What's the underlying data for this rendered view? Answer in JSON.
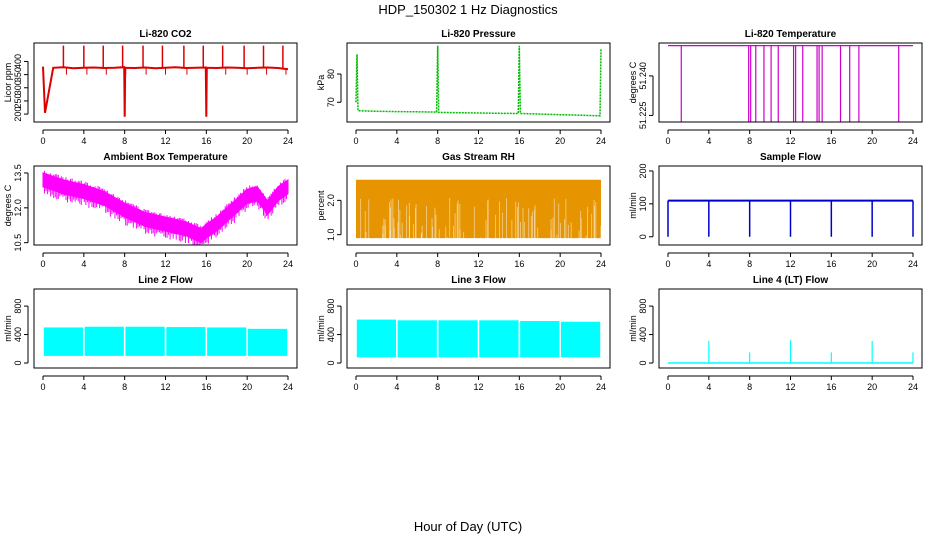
{
  "figure": {
    "title": "HDP_150302  1 Hz Diagnostics",
    "xlabel": "Hour of Day (UTC)"
  },
  "chart_data": [
    {
      "id": "co2",
      "type": "line",
      "title": "Li-820 CO2",
      "ylabel": "Licor ppm",
      "color": "#dd0000",
      "xlim": [
        0,
        24
      ],
      "ylim": [
        170,
        470
      ],
      "xticks": [
        0,
        4,
        8,
        12,
        16,
        20,
        24
      ],
      "yticks": [
        200,
        250,
        300,
        350,
        400
      ],
      "baseline": 375,
      "x": [
        0,
        0.2,
        1,
        2,
        3,
        4,
        5,
        6,
        7,
        7.95,
        8.0,
        8.05,
        9,
        10,
        11,
        12,
        13,
        14,
        15,
        15.95,
        16.0,
        16.05,
        17,
        18,
        19,
        20,
        21,
        22,
        23,
        24
      ],
      "y": [
        380,
        205,
        376,
        378,
        374,
        376,
        377,
        375,
        376,
        378,
        190,
        376,
        375,
        377,
        374,
        376,
        378,
        375,
        376,
        377,
        190,
        376,
        375,
        377,
        376,
        374,
        376,
        377,
        375,
        370
      ],
      "spikes_up_x": [
        2.0,
        4.0,
        5.9,
        7.8,
        9.8,
        11.7,
        13.8,
        15.7,
        17.6,
        19.7,
        21.6,
        23.5
      ]
    },
    {
      "id": "pressure",
      "type": "line",
      "title": "Li-820 Pressure",
      "ylabel": "kPa",
      "color": "#00bb00",
      "xlim": [
        0,
        24
      ],
      "ylim": [
        63,
        91
      ],
      "xticks": [
        0,
        4,
        8,
        12,
        16,
        20,
        24
      ],
      "yticks": [
        70,
        80
      ],
      "x": [
        0,
        0.1,
        0.2,
        2,
        4,
        6,
        7.9,
        8.0,
        8.1,
        10,
        12,
        14,
        15.9,
        16.0,
        16.1,
        18,
        20,
        22,
        23.9,
        24.0
      ],
      "y": [
        70,
        87,
        67,
        66.8,
        66.7,
        66.6,
        66.5,
        90,
        66.4,
        66.3,
        66.2,
        66.1,
        66.0,
        90,
        66.0,
        65.8,
        65.6,
        65.4,
        65.2,
        89
      ]
    },
    {
      "id": "temperature",
      "type": "line",
      "title": "Li-820 Temperature",
      "ylabel": "degrees C",
      "color": "#cc00cc",
      "xlim": [
        0,
        24
      ],
      "ylim": [
        51.2225,
        51.2525
      ],
      "xticks": [
        0,
        4,
        8,
        12,
        16,
        20,
        24
      ],
      "yticks": [
        51.225,
        51.24
      ],
      "ytick_labels": [
        "51.225",
        "51.240"
      ],
      "baseline": 51.2515,
      "dip_x": [
        1.3,
        7.9,
        8.1,
        8.6,
        9.4,
        10.1,
        10.8,
        12.3,
        12.5,
        13.2,
        14.6,
        14.8,
        15.1,
        16.9,
        17.8,
        18.7,
        22.6
      ]
    },
    {
      "id": "ambient",
      "type": "line",
      "title": "Ambient Box Temperature",
      "ylabel": "degrees C",
      "color": "#ff00ff",
      "xlim": [
        0,
        24
      ],
      "ylim": [
        10.4,
        13.8
      ],
      "xticks": [
        0,
        4,
        8,
        12,
        16,
        20,
        24
      ],
      "yticks": [
        10.5,
        12.0,
        13.5
      ],
      "ytick_labels": [
        "10.5",
        "12.0",
        "13.5"
      ],
      "x": [
        0,
        2,
        4,
        6,
        8,
        10,
        12,
        14,
        15.5,
        16,
        17,
        18,
        19,
        20,
        21,
        22,
        23,
        24
      ],
      "y": [
        13.2,
        12.9,
        12.7,
        12.4,
        11.9,
        11.5,
        11.3,
        11.1,
        10.8,
        11.0,
        11.3,
        11.7,
        12.1,
        12.5,
        12.6,
        12.0,
        12.6,
        12.9
      ],
      "band": 0.3
    },
    {
      "id": "rh",
      "type": "area",
      "title": "Gas Stream RH",
      "ylabel": "percent",
      "color": "#e69500",
      "xlim": [
        0,
        24
      ],
      "ylim": [
        0.7,
        3.0
      ],
      "xticks": [
        0,
        4,
        8,
        12,
        16,
        20,
        24
      ],
      "yticks": [
        1.0,
        2.0
      ],
      "ytick_labels": [
        "1.0",
        "2.0"
      ],
      "upper": 2.6,
      "lower": 0.9
    },
    {
      "id": "sampleflow",
      "type": "line",
      "title": "Sample Flow",
      "ylabel": "ml/min",
      "color": "#0000cc",
      "xlim": [
        0,
        24
      ],
      "ylim": [
        -25,
        215
      ],
      "xticks": [
        0,
        4,
        8,
        12,
        16,
        20,
        24
      ],
      "yticks": [
        0,
        100,
        200
      ],
      "baseline": 110,
      "dip_x": [
        0.0,
        4.0,
        8.0,
        12.0,
        16.0,
        20.0,
        24.0
      ],
      "dip_value": 0
    },
    {
      "id": "line2",
      "type": "area",
      "title": "Line 2 Flow",
      "ylabel": "ml/min",
      "color": "#00ffff",
      "xlim": [
        0,
        24
      ],
      "ylim": [
        -70,
        1040
      ],
      "xticks": [
        0,
        4,
        8,
        12,
        16,
        20,
        24
      ],
      "yticks": [
        0,
        400,
        800
      ],
      "segments": [
        [
          0,
          4,
          500,
          100
        ],
        [
          4,
          8,
          510,
          100
        ],
        [
          8,
          12,
          510,
          100
        ],
        [
          12,
          16,
          505,
          100
        ],
        [
          16,
          20,
          500,
          100
        ],
        [
          20,
          24,
          480,
          100
        ]
      ]
    },
    {
      "id": "line3",
      "type": "area",
      "title": "Line 3 Flow",
      "ylabel": "ml/min",
      "color": "#00ffff",
      "xlim": [
        0,
        24
      ],
      "ylim": [
        -70,
        1040
      ],
      "xticks": [
        0,
        4,
        8,
        12,
        16,
        20,
        24
      ],
      "yticks": [
        0,
        400,
        800
      ],
      "segments": [
        [
          0,
          4,
          610,
          80
        ],
        [
          4,
          8,
          600,
          80
        ],
        [
          8,
          12,
          600,
          80
        ],
        [
          12,
          16,
          600,
          80
        ],
        [
          16,
          20,
          590,
          80
        ],
        [
          20,
          24,
          580,
          80
        ]
      ]
    },
    {
      "id": "line4",
      "type": "line",
      "title": "Line 4 (LT) Flow",
      "ylabel": "ml/min",
      "color": "#00ffff",
      "xlim": [
        0,
        24
      ],
      "ylim": [
        -70,
        1040
      ],
      "xticks": [
        0,
        4,
        8,
        12,
        16,
        20,
        24
      ],
      "yticks": [
        0,
        400,
        800
      ],
      "baseline": 0,
      "spike_x": [
        4,
        8,
        12,
        16,
        20,
        24
      ],
      "spike_y": [
        310,
        150,
        320,
        150,
        310,
        150
      ]
    }
  ]
}
